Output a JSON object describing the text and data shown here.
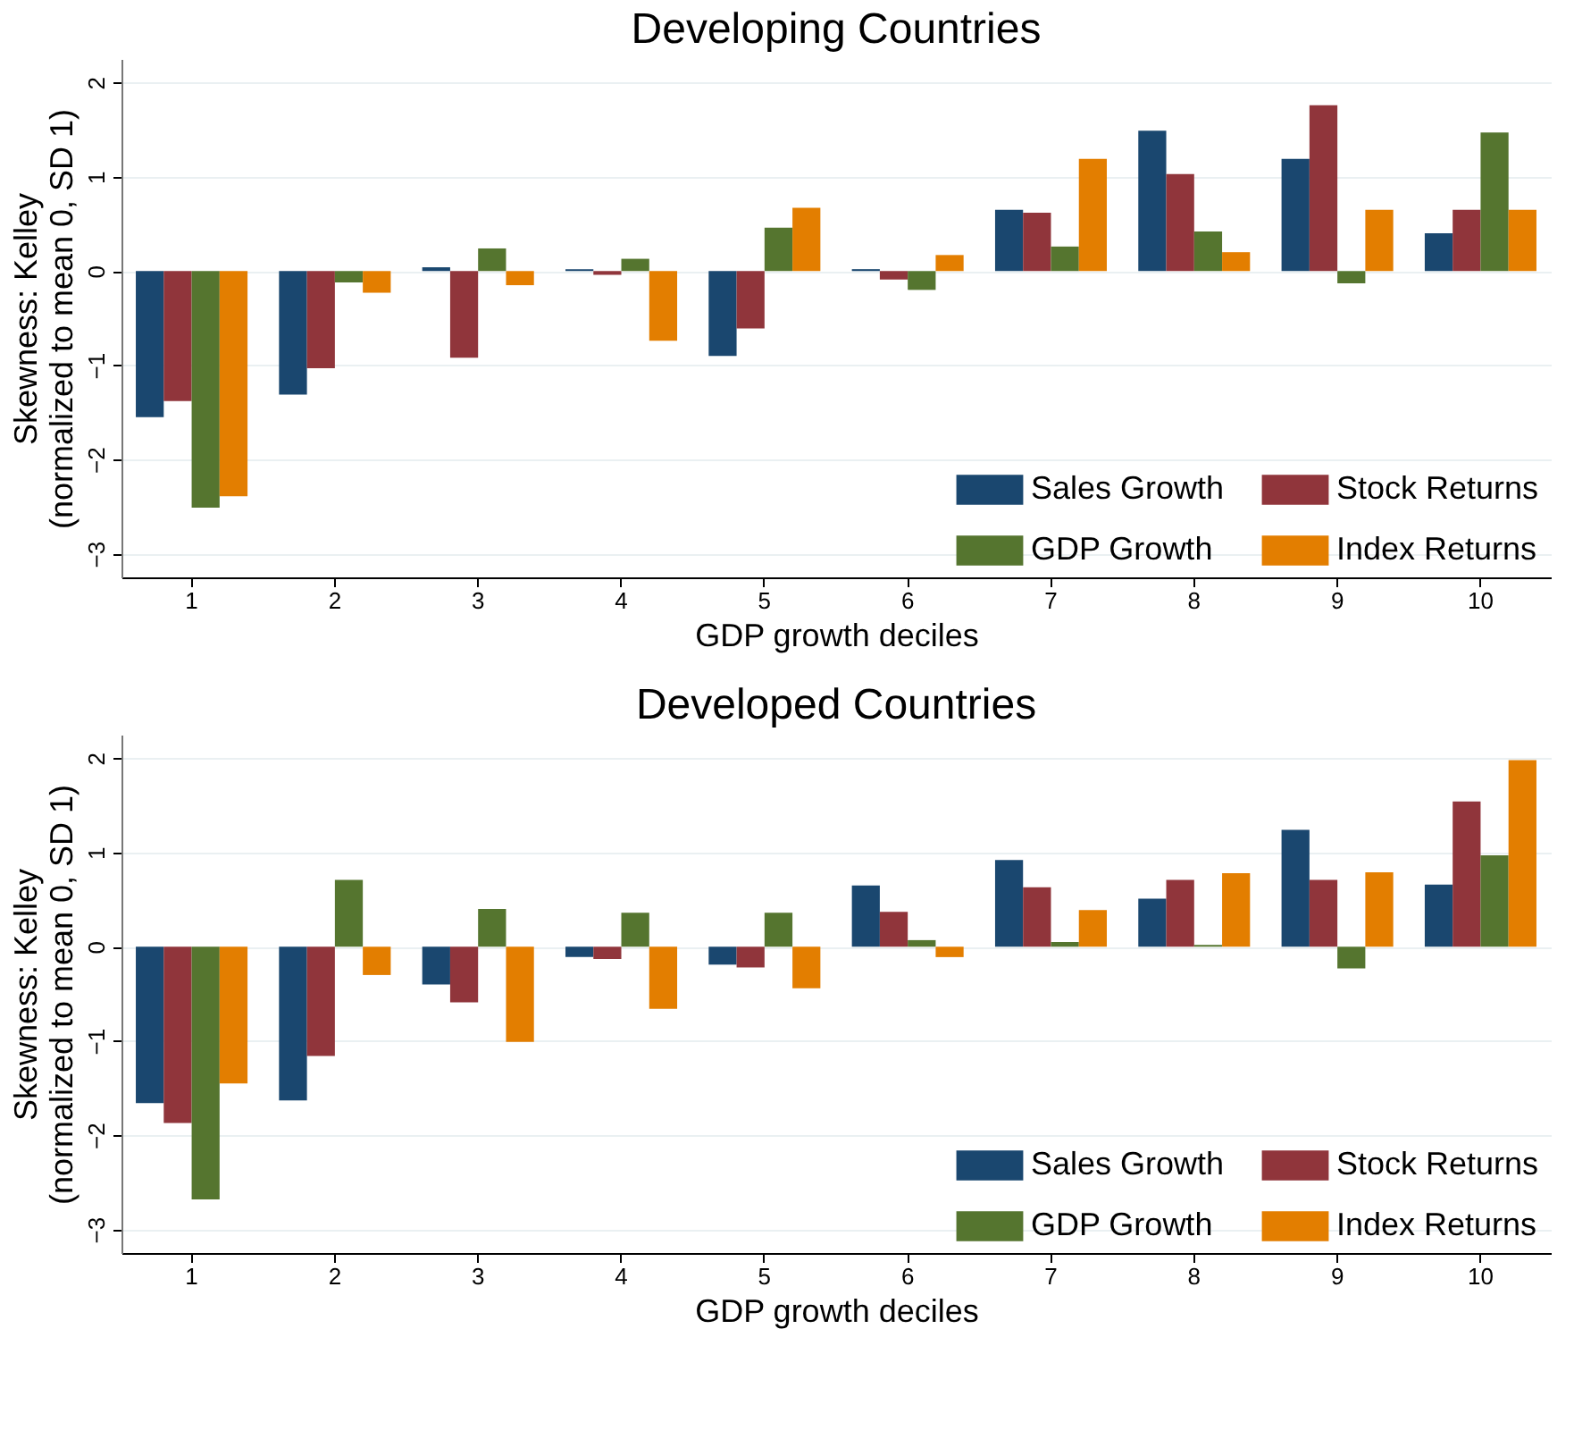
{
  "chart_data": [
    {
      "type": "bar",
      "title": "Developing Countries",
      "xlabel": "GDP growth deciles",
      "ylabel": "Skewness: Kelley\n(normalized to mean 0, SD 1)",
      "categories": [
        "1",
        "2",
        "3",
        "4",
        "5",
        "6",
        "7",
        "8",
        "9",
        "10"
      ],
      "ylim": [
        -3.25,
        2.25
      ],
      "yticks": [
        -3,
        -2,
        -1,
        0,
        1,
        2
      ],
      "grid": "y",
      "legend": "bottom right",
      "series": [
        {
          "name": "Sales Growth",
          "color": "#1a476f",
          "values": [
            -1.55,
            -1.31,
            0.04,
            0.02,
            -0.9,
            0.02,
            0.65,
            1.49,
            1.19,
            0.4
          ]
        },
        {
          "name": "Stock Returns",
          "color": "#90353b",
          "values": [
            -1.38,
            -1.03,
            -0.92,
            -0.04,
            -0.61,
            -0.09,
            0.62,
            1.03,
            1.76,
            0.65
          ]
        },
        {
          "name": "GDP Growth",
          "color": "#55752f",
          "values": [
            -2.51,
            -0.12,
            0.24,
            0.13,
            0.46,
            -0.2,
            0.26,
            0.42,
            -0.13,
            1.47
          ]
        },
        {
          "name": "Index Returns",
          "color": "#e37e00",
          "values": [
            -2.39,
            -0.23,
            -0.15,
            -0.74,
            0.67,
            0.17,
            1.19,
            0.2,
            0.65,
            0.65
          ]
        }
      ]
    },
    {
      "type": "bar",
      "title": "Developed Countries",
      "xlabel": "GDP growth deciles",
      "ylabel": "Skewness: Kelley\n(normalized to mean 0, SD 1)",
      "categories": [
        "1",
        "2",
        "3",
        "4",
        "5",
        "6",
        "7",
        "8",
        "9",
        "10"
      ],
      "ylim": [
        -3.25,
        2.25
      ],
      "yticks": [
        -3,
        -2,
        -1,
        0,
        1,
        2
      ],
      "grid": "y",
      "legend": "bottom right",
      "series": [
        {
          "name": "Sales Growth",
          "color": "#1a476f",
          "values": [
            -1.66,
            -1.63,
            -0.4,
            -0.11,
            -0.19,
            0.65,
            0.92,
            0.51,
            1.24,
            0.66
          ]
        },
        {
          "name": "Stock Returns",
          "color": "#90353b",
          "values": [
            -1.87,
            -1.16,
            -0.59,
            -0.13,
            -0.22,
            0.37,
            0.63,
            0.71,
            0.71,
            1.54
          ]
        },
        {
          "name": "GDP Growth",
          "color": "#55752f",
          "values": [
            -2.68,
            0.71,
            0.4,
            0.36,
            0.36,
            0.07,
            0.05,
            0.02,
            -0.23,
            0.97
          ]
        },
        {
          "name": "Index Returns",
          "color": "#e37e00",
          "values": [
            -1.45,
            -0.3,
            -1.01,
            -0.66,
            -0.44,
            -0.11,
            0.39,
            0.78,
            0.79,
            1.98
          ]
        }
      ]
    }
  ]
}
